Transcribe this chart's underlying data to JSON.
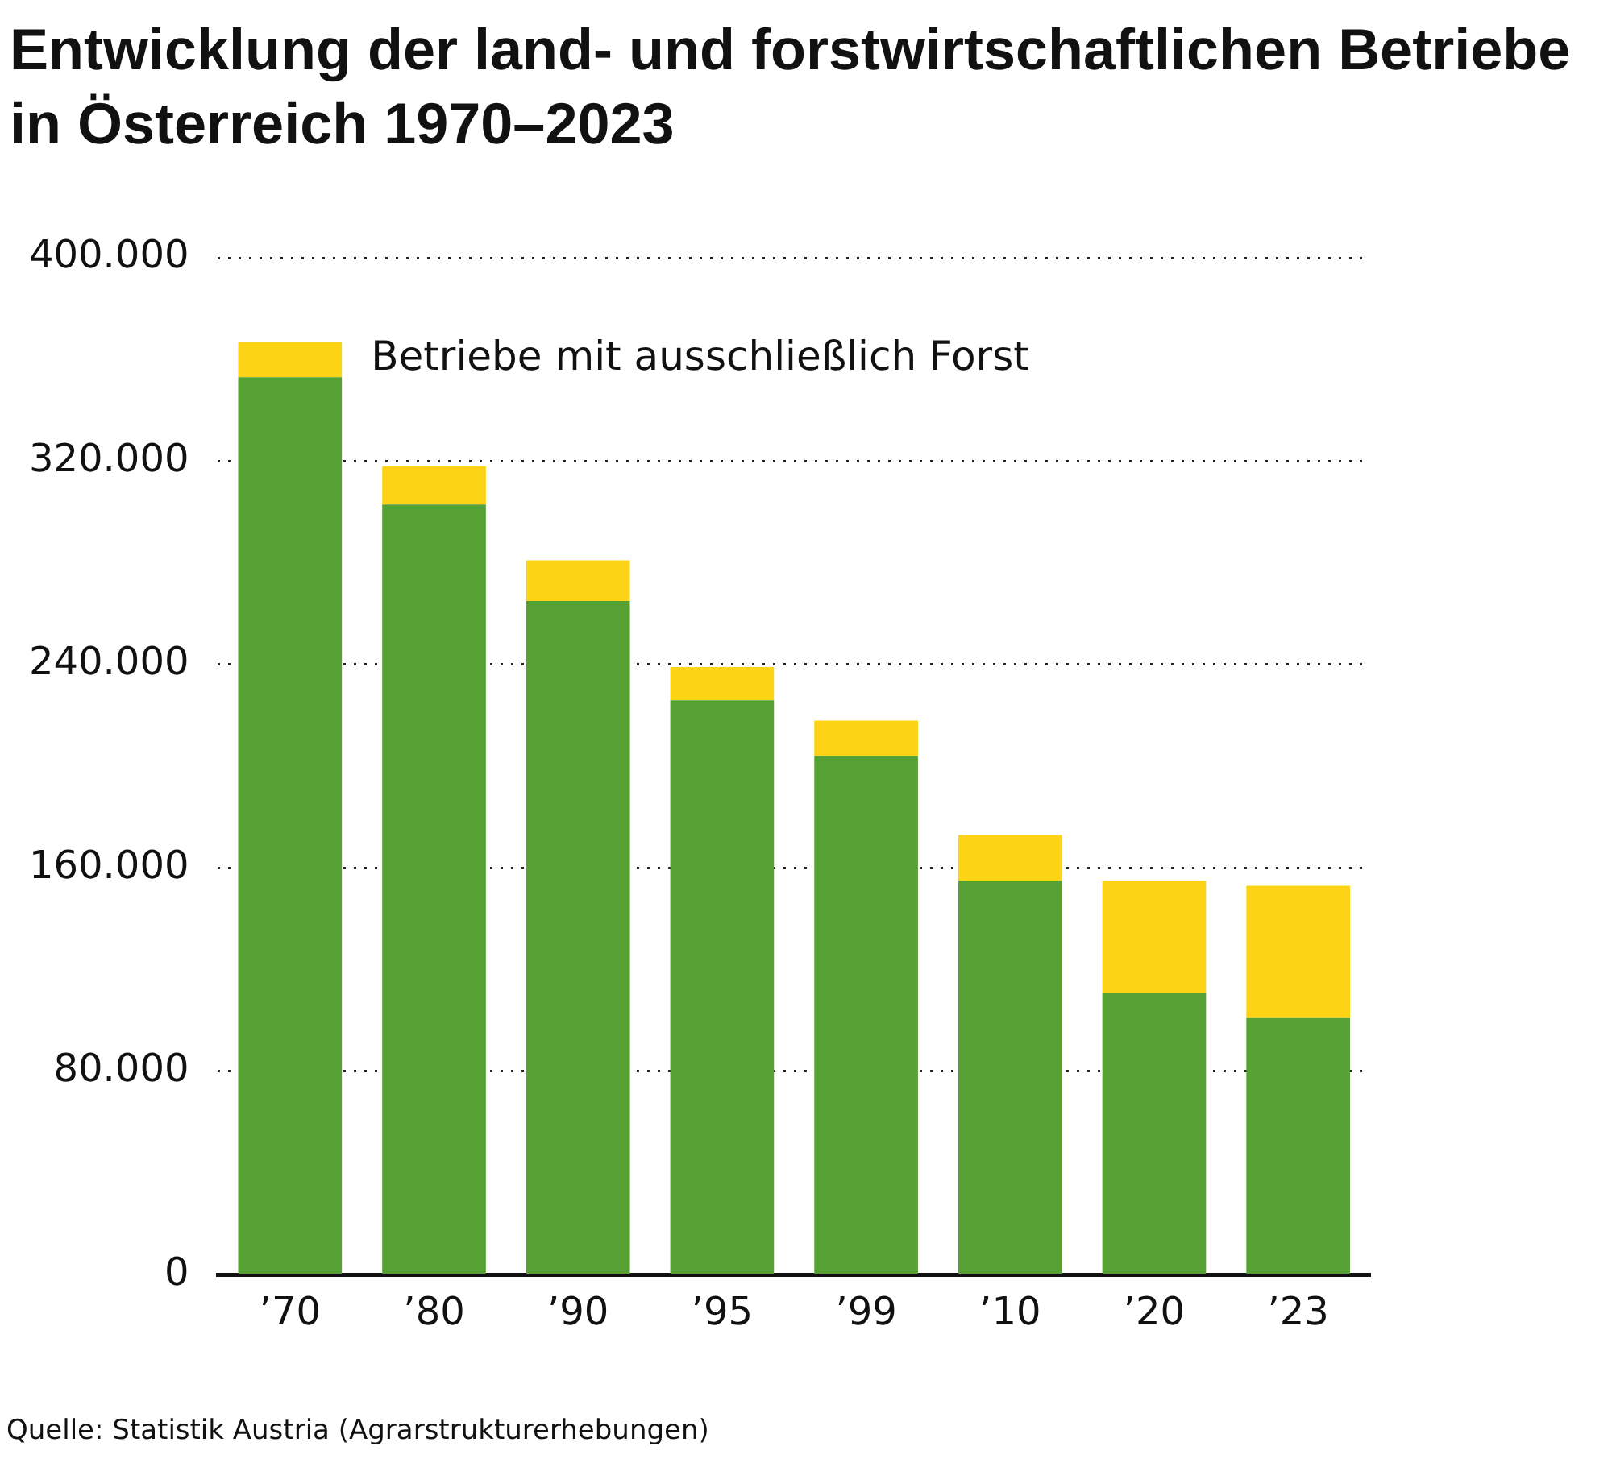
{
  "chart_data": {
    "type": "bar",
    "title": "Entwicklung der land- und forstwirtschaftlichen Betriebe in Österreich 1970–2023",
    "categories": [
      "’70",
      "’80",
      "’90",
      "’95",
      "’99",
      "’10",
      "’20",
      "’23"
    ],
    "stacked": true,
    "series": [
      {
        "color": "#56a034",
        "values": [
          353000,
          303000,
          265000,
          226000,
          204000,
          155000,
          111000,
          101000
        ]
      },
      {
        "name": "Betriebe mit ausschließlich Forst",
        "color": "#fcd415",
        "values": [
          14000,
          15000,
          16000,
          13000,
          14000,
          18000,
          44000,
          52000
        ]
      }
    ],
    "ylim": [
      0,
      400000
    ],
    "yticks": [
      {
        "value": 0,
        "label": "0"
      },
      {
        "value": 80000,
        "label": "80.000"
      },
      {
        "value": 160000,
        "label": "160.000"
      },
      {
        "value": 240000,
        "label": "240.000"
      },
      {
        "value": 320000,
        "label": "320.000"
      },
      {
        "value": 400000,
        "label": "400.000"
      }
    ],
    "grid": "y",
    "legend": false,
    "annotations": [
      "Quelle: Statistik Austria (Agrarstrukturerhebungen)"
    ]
  }
}
